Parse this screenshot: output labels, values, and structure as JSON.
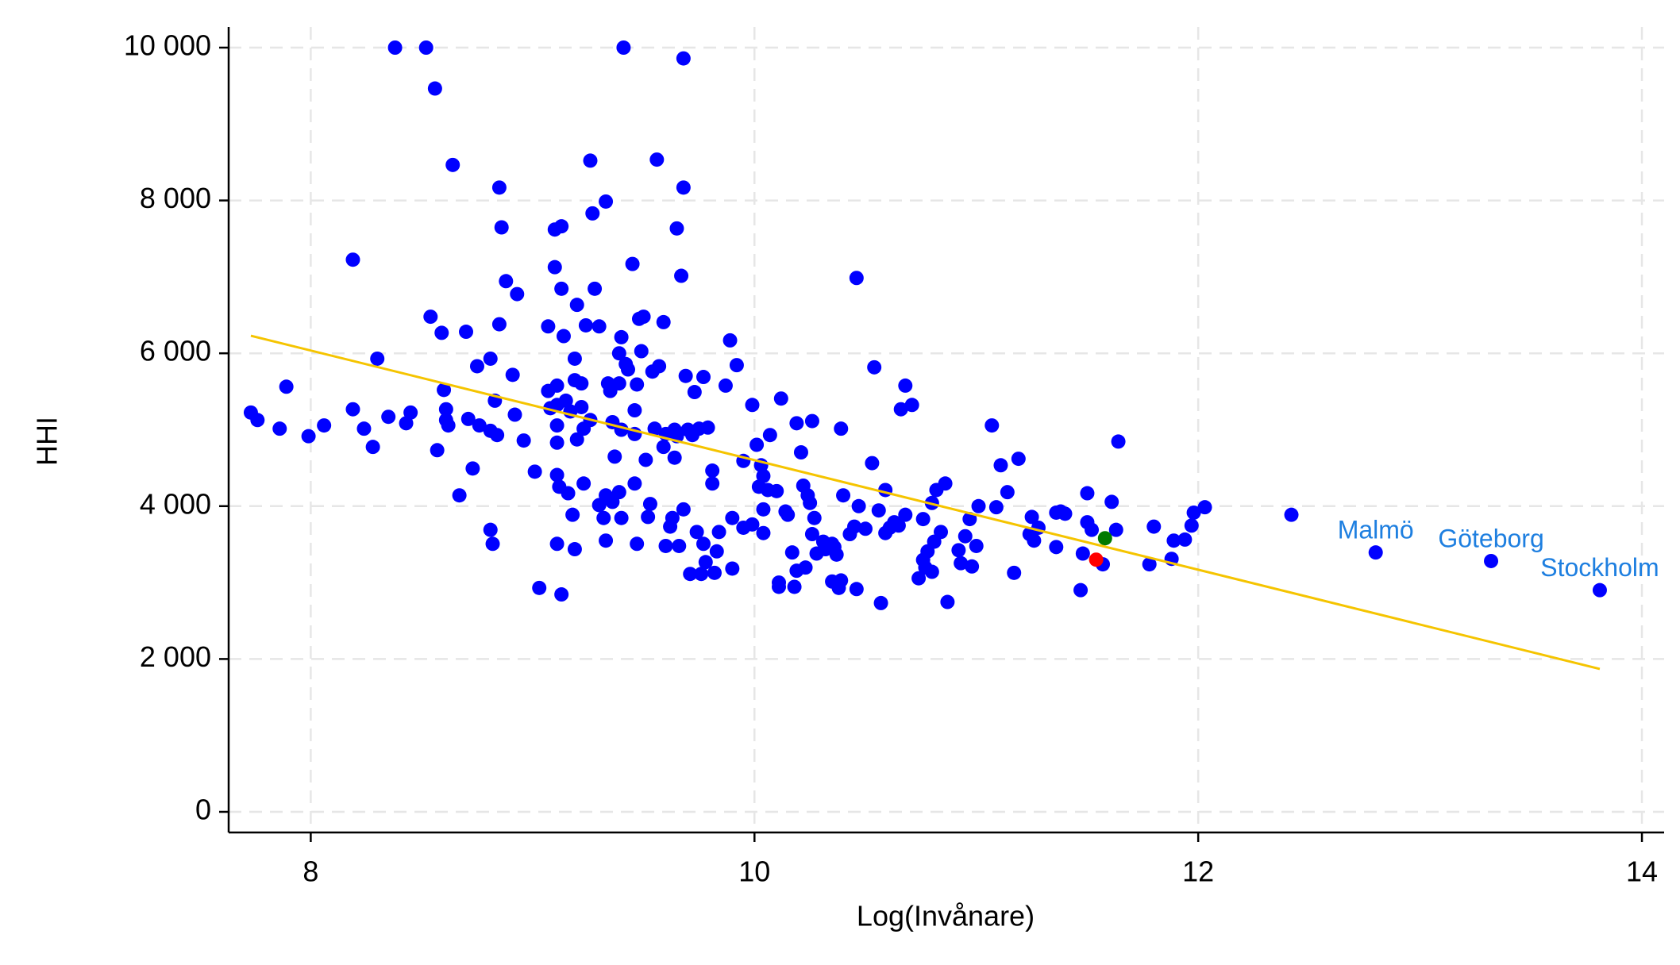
{
  "chart_data": {
    "type": "scatter",
    "xlabel": "Log(Invånare)",
    "ylabel": "HHI",
    "xlim": [
      7.63,
      14.1
    ],
    "ylim": [
      -270,
      10270
    ],
    "xticks": [
      8,
      10,
      12,
      14
    ],
    "yticks": [
      0,
      {
        "value": 2000,
        "label": "2 000"
      },
      {
        "value": 4000,
        "label": "4 000"
      },
      {
        "value": 6000,
        "label": "6 000"
      },
      {
        "value": 8000,
        "label": "8 000"
      },
      {
        "value": 10000,
        "label": "10 000"
      }
    ],
    "grid": true,
    "series": [
      {
        "color": "#0000ff",
        "x": [
          7.73,
          7.76,
          7.86,
          7.89,
          7.99,
          8.06,
          8.19,
          8.19,
          8.24,
          8.28,
          8.3,
          8.35,
          8.38,
          8.43,
          8.45,
          8.52,
          8.54,
          8.56,
          8.57,
          8.59,
          8.6,
          8.61,
          8.61,
          8.62,
          8.64,
          8.67,
          8.7,
          8.71,
          8.73,
          8.75,
          8.76,
          8.81,
          8.81,
          8.82,
          8.81,
          8.83,
          8.84,
          8.85,
          8.85,
          8.86,
          8.88,
          8.91,
          8.92,
          8.93,
          8.96,
          9.01,
          9.03,
          9.07,
          9.07,
          9.08,
          9.1,
          9.1,
          9.11,
          9.11,
          9.11,
          9.11,
          9.11,
          9.12,
          9.13,
          9.11,
          9.13,
          9.13,
          9.14,
          9.15,
          9.16,
          9.17,
          9.19,
          9.19,
          9.19,
          9.18,
          9.2,
          9.2,
          9.22,
          9.22,
          9.23,
          9.23,
          9.24,
          9.26,
          9.26,
          9.27,
          9.28,
          9.3,
          9.3,
          9.32,
          9.33,
          9.33,
          9.34,
          9.33,
          9.35,
          9.36,
          9.36,
          9.37,
          9.39,
          9.39,
          9.4,
          9.39,
          9.4,
          9.4,
          9.41,
          9.42,
          9.43,
          9.45,
          9.46,
          9.46,
          9.46,
          9.47,
          9.47,
          9.48,
          9.49,
          9.5,
          9.51,
          9.52,
          9.53,
          9.54,
          9.55,
          9.56,
          9.57,
          9.59,
          9.59,
          9.6,
          9.6,
          9.62,
          9.63,
          9.64,
          9.64,
          9.65,
          9.65,
          9.66,
          9.67,
          9.68,
          9.68,
          9.68,
          9.69,
          9.7,
          9.71,
          9.72,
          9.73,
          9.74,
          9.75,
          9.76,
          9.77,
          9.77,
          9.78,
          9.79,
          9.81,
          9.81,
          9.82,
          9.83,
          9.84,
          9.87,
          9.89,
          9.9,
          9.9,
          9.92,
          9.95,
          9.95,
          9.99,
          9.99,
          10.01,
          10.02,
          10.03,
          10.04,
          10.04,
          10.04,
          10.06,
          10.07,
          10.1,
          10.11,
          10.11,
          10.12,
          10.14,
          10.15,
          10.17,
          10.18,
          10.19,
          10.19,
          10.21,
          10.22,
          10.23,
          10.24,
          10.25,
          10.26,
          10.26,
          10.27,
          10.28,
          10.31,
          10.32,
          10.35,
          10.35,
          10.36,
          10.37,
          10.38,
          10.39,
          10.39,
          10.4,
          10.43,
          10.45,
          10.46,
          10.46,
          10.47,
          10.5,
          10.53,
          10.54,
          10.56,
          10.57,
          10.59,
          10.59,
          10.61,
          10.63,
          10.65,
          10.66,
          10.68,
          10.68,
          10.71,
          10.74,
          10.76,
          10.76,
          10.77,
          10.78,
          10.8,
          10.8,
          10.81,
          10.82,
          10.84,
          10.86,
          10.87,
          10.92,
          10.93,
          10.95,
          10.97,
          10.98,
          11.0,
          11.01,
          11.07,
          11.09,
          11.11,
          11.14,
          11.17,
          11.19,
          11.24,
          11.25,
          11.26,
          11.28,
          11.36,
          11.36,
          11.38,
          11.4,
          11.47,
          11.48,
          11.5,
          11.5,
          11.52,
          11.57,
          11.61,
          11.63,
          11.64,
          11.78,
          11.8,
          11.88,
          11.89,
          11.94,
          11.97,
          11.98,
          12.03,
          12.42
        ],
        "values": [
          5225,
          5127,
          5014,
          5563,
          4915,
          5056,
          7225,
          5268,
          5014,
          4775,
          5930,
          5169,
          10000,
          5085,
          5225,
          10000,
          6479,
          9465,
          4732,
          6268,
          5521,
          5127,
          5268,
          5056,
          8465,
          4141,
          6282,
          5141,
          4493,
          5831,
          5056,
          4986,
          3690,
          3507,
          5930,
          5380,
          4930,
          8169,
          6380,
          7648,
          6944,
          5718,
          5197,
          6775,
          4859,
          4451,
          2930,
          6352,
          5507,
          5282,
          7127,
          7620,
          5577,
          5324,
          5056,
          4831,
          4408,
          4254,
          7662,
          3507,
          6845,
          2845,
          6225,
          5380,
          4169,
          5239,
          5648,
          5930,
          3437,
          3887,
          6634,
          4873,
          5606,
          5296,
          5014,
          4296,
          6366,
          5127,
          8521,
          7831,
          6845,
          6352,
          4014,
          3845,
          7986,
          4141,
          5606,
          3549,
          5507,
          5099,
          4056,
          4648,
          4183,
          5606,
          6211,
          6000,
          5000,
          3845,
          10000,
          5859,
          5789,
          7169,
          5254,
          4944,
          4296,
          3507,
          5592,
          6451,
          6028,
          6479,
          4606,
          3859,
          4028,
          5761,
          5014,
          8535,
          5831,
          4775,
          6408,
          3479,
          4944,
          3732,
          3845,
          5000,
          4634,
          7634,
          4915,
          3479,
          7014,
          9859,
          3958,
          8169,
          5704,
          5000,
          3113,
          4930,
          5493,
          3662,
          5014,
          3113,
          5690,
          3507,
          3268,
          5028,
          4465,
          4296,
          3127,
          3408,
          3662,
          5577,
          6169,
          3845,
          3183,
          5845,
          4592,
          3718,
          3761,
          5324,
          4803,
          4254,
          4535,
          3648,
          4394,
          3958,
          4211,
          4930,
          4197,
          3000,
          2944,
          5408,
          3930,
          3887,
          3394,
          2944,
          5085,
          3155,
          4704,
          4268,
          3197,
          4141,
          4042,
          5113,
          3634,
          3845,
          3380,
          3535,
          3437,
          3507,
          3014,
          3465,
          3366,
          2930,
          5014,
          3028,
          4141,
          3634,
          3732,
          2915,
          6986,
          4000,
          3704,
          4563,
          5817,
          3944,
          2732,
          4211,
          3648,
          3718,
          3789,
          3746,
          5268,
          5577,
          3887,
          5324,
          3056,
          3831,
          3296,
          3197,
          3408,
          3141,
          4042,
          3535,
          4211,
          3662,
          4296,
          2746,
          3423,
          3254,
          3606,
          3831,
          3211,
          3479,
          4000,
          5056,
          3986,
          4535,
          4183,
          3127,
          4620,
          3634,
          3859,
          3549,
          3718,
          3915,
          3465,
          3930,
          3901,
          2901,
          3380,
          4169,
          3789,
          3690,
          3239,
          4056,
          3690,
          4845,
          3239,
          3732,
          3310,
          3549,
          3563,
          3746,
          3915,
          3986,
          3887
        ]
      },
      {
        "color": "#0000ff",
        "x": [
          12.8,
          13.32,
          13.81
        ],
        "values": [
          3394,
          3282,
          2901
        ],
        "labels": [
          "Malmö",
          "Göteborg",
          "Stockholm"
        ],
        "label_color": "#1e7fe0"
      },
      {
        "color": "#007a00",
        "x": [
          11.58
        ],
        "values": [
          3580
        ]
      },
      {
        "color": "#ff0000",
        "x": [
          11.54
        ],
        "values": [
          3300
        ]
      },
      {
        "color": "#f5c400",
        "line": true,
        "x": [
          7.73,
          13.81
        ],
        "values": [
          6230,
          1870
        ]
      }
    ]
  }
}
